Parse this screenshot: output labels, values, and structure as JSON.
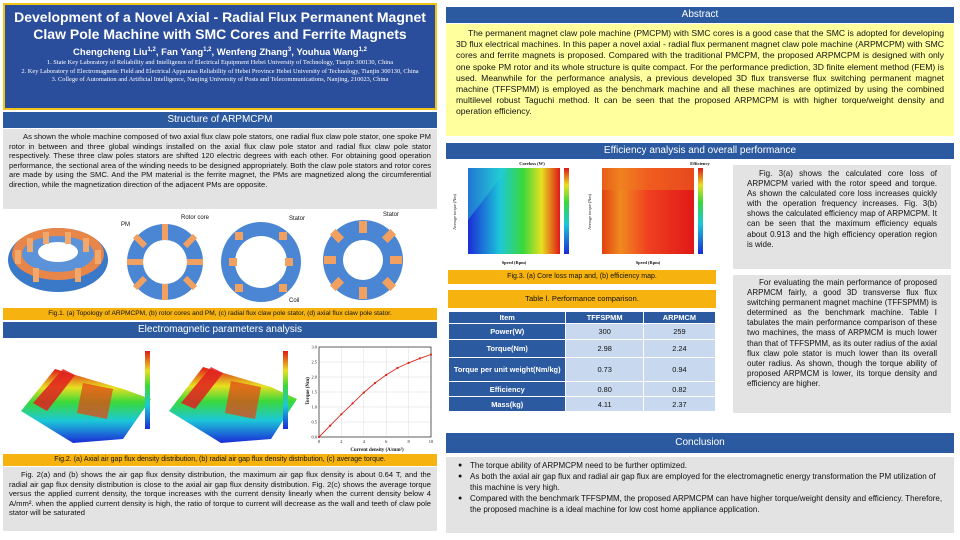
{
  "header": {
    "title_line1": "Development of a Novel Axial - Radial Flux Permanent Magnet",
    "title_line2": "Claw Pole Machine with SMC Cores and Ferrite Magnets",
    "authors": [
      {
        "name": "Chengcheng Liu",
        "sup": "1,2"
      },
      {
        "name": "Fan Yang",
        "sup": "1,2"
      },
      {
        "name": "Wenfeng Zhang",
        "sup": "3"
      },
      {
        "name": "Youhua Wang",
        "sup": "1,2"
      }
    ],
    "affiliations": [
      "1. State Key Laboratory of Reliability and Intelligence of Electrical Equipment Hebei University of Technology, Tianjin 300130, China",
      "2. Key Laboratory of Electromagnetic Field and Electrical Apparatus Reliability of Hebei Province Hebei University of Technology, Tianjin 300130, China",
      "3. College of Automation and Artificial Intelligence, Nanjing University of Posts and Telecommunications, Nanjing, 210023, China"
    ]
  },
  "structure": {
    "title": "Structure of ARPMCPM",
    "text": "As shown the whole machine composed of two axial flux claw pole stators, one radial flux claw pole stator, one spoke PM rotor in between and three global windings installed on the axial flux claw pole stator and radial flux claw pole stator respectively. These three claw poles stators are shifted 120 electric degrees with each other. For obtaining good operation performance, the sectional area of the winding needs to be designed appropriately. Both the claw pole stators and rotor cores are made by using the SMC. And the PM material is the ferrite magnet, the PMs are magnetized along the circumferential direction, while the magnetization direction of the adjacent PMs are opposite.",
    "fig_labels": [
      "PM",
      "Rotor core",
      "Stator",
      "Stator",
      "Coil"
    ],
    "caption": "Fig.1. (a) Topology of ARPMCPM, (b) rotor cores and PM, (c) radial flux claw pole stator, (d) axial flux claw pole stator."
  },
  "em": {
    "title": "Electromagnetic parameters analysis",
    "caption": "Fig.2. (a) Axial air gap flux density distribution, (b) radial air gap flux density distribution, (c) average torque.",
    "text": "Fig. 2(a) and (b) shows the air gap flux density distribution, the maximum air gap flux density is about 0.64 T, and the radial air gap flux density distribution is close to the axial air gap flux density distribution. Fig. 2(c) shows the average torque versus the applied current density, the torque increases with the current density linearly when the current density below 4 A/mm². when the applied current density is high, the ratio of torque to current will decrease as the wall and teeth of  claw pole stator will be saturated"
  },
  "chart_data": [
    {
      "type": "line",
      "xlabel": "Current density (A/mm²)",
      "ylabel": "Torque (Nm)",
      "x": [
        0,
        1,
        2,
        3,
        4,
        5,
        6,
        7,
        8,
        9,
        10
      ],
      "y": [
        0,
        0.38,
        0.76,
        1.12,
        1.48,
        1.8,
        2.07,
        2.3,
        2.47,
        2.62,
        2.75
      ],
      "xlim": [
        0,
        10
      ],
      "ylim": [
        0,
        3.0
      ],
      "xticks": [
        "0",
        "2",
        "4",
        "6",
        "8",
        "10"
      ],
      "yticks": [
        "0.0",
        "0.5",
        "1.0",
        "1.5",
        "2.0",
        "2.5",
        "3.0"
      ],
      "color": "#d6281f",
      "grid": true
    }
  ],
  "abstract": {
    "title": "Abstract",
    "text": "The permanent magnet claw pole machine (PMCPM) with SMC cores is a good case that the SMC is adopted for developing 3D flux electrical machines. In this paper a novel axial - radial flux permanent magnet claw pole machine (ARPMCPM) with SMC cores and ferrite magnets is proposed. Compared with the traditional PMCPM, the proposed ARPMCPM is designed with only one spoke PM rotor and its whole structure is quite compact. For the performance prediction, 3D finite element method (FEM) is used. Meanwhile for the performance analysis, a previous developed 3D flux transverse flux switching permanent magnet machine (TFFSPMM) is employed as the benchmark machine and all these machines are optimized by using the combined multilevel robust Taguchi method. It can be seen that the proposed ARPMCPM is with higher torque/weight density and operation efficiency."
  },
  "efficiency": {
    "title": "Efficiency analysis and overall performance",
    "map_titles": [
      "Coreloss (W)",
      "Efficiency"
    ],
    "map_xlabel": "Speed (Rpm)",
    "map_ylabels": [
      "Average torque (Nm)",
      "Average torque (Nm)"
    ],
    "caption": "Fig.3. (a) Core loss map and, (b) efficiency map.",
    "text1": "Fig. 3(a) shows the calculated core loss of ARPMCPM varied with the rotor speed and torque. As shown the calculated core loss increases quickly with the operation frequency increases. Fig. 3(b) shows the calculated efficiency map of ARPMCPM. It can be seen that the maximum efficiency equals about 0.913 and the high efficiency operation region is wide.",
    "text2": "For evaluating the main performance of proposed ARPMCM fairly, a good 3D transverse flux flux switching permanent magnet machine (TFFSPMM) is determined as the benchmark machine. Table Ⅰ tabulates the main performance comparison of these two machines, the mass of ARPMCM is much lower than that of TFFSPMM, as its outer radius of the axial flux claw pole stator is much lower than its overall outer radius. As shown, though the torque ability of proposed ARPMCM is lower, its torque density and efficiency are higher.",
    "table_title": "Table Ⅰ. Performance comparison.",
    "table": {
      "headers": [
        "Item",
        "TFFSPMM",
        "ARPMCM"
      ],
      "rows": [
        [
          "Power(W)",
          "300",
          "259"
        ],
        [
          "Torque(Nm)",
          "2.98",
          "2.24"
        ],
        [
          "Torque per unit weight(Nm/kg)",
          "0.73",
          "0.94"
        ],
        [
          "Efficiency",
          "0.80",
          "0.82"
        ],
        [
          "Mass(kg)",
          "4.11",
          "2.37"
        ]
      ]
    }
  },
  "conclusion": {
    "title": "Conclusion",
    "items": [
      "The torque ability of ARPMCPM need to be further optimized.",
      "As both the axial air gap flux and radial air gap flux are employed for the electromagnetic energy transformation the PM utilization of this machine is very high.",
      "Compared with the benchmark TFFSPMM, the proposed ARPMCPM can have higher torque/weight density and efficiency. Therefore, the proposed machine is a ideal machine for low cost home appliance application."
    ]
  }
}
